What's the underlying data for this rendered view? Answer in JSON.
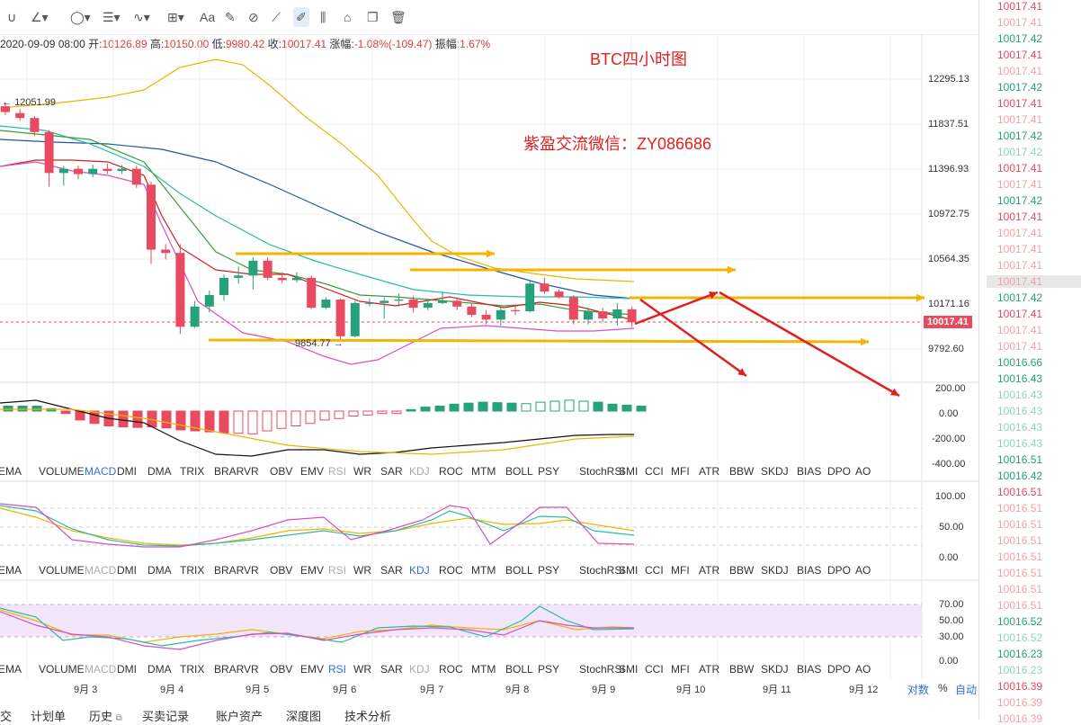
{
  "toolbar": {
    "icons": [
      "curve-icon",
      "polyline-dropdown-icon",
      "ellipse-dropdown-icon",
      "lines-dropdown-icon",
      "wave-dropdown-icon",
      "measure-dropdown-icon",
      "text-tool-icon",
      "brush-icon",
      "magnet-icon",
      "ruler-icon",
      "pen-icon",
      "indicator-scale-icon",
      "lock-icon",
      "copy-icon",
      "delete-icon"
    ],
    "text_tool_label": "Aa"
  },
  "ohlc": {
    "date": "2020-09-09 08:00",
    "open_label": "开:",
    "open": "10126.89",
    "high_label": "高:",
    "high": "10150.00",
    "low_label": "低:",
    "low": "9980.42",
    "close_label": "收:",
    "close": "10017.41",
    "change_label": "涨幅:",
    "change": "-1.08%(-109.47)",
    "amp_label": "振幅:",
    "amp": "1.67%"
  },
  "annotations": {
    "title": "BTC四小时图",
    "contact": "紫盈交流微信：ZY086686",
    "high_marker": "12051.99",
    "low_marker": "9854.77"
  },
  "main_axis": {
    "ticks": [
      "12295.13",
      "11837.51",
      "11396.93",
      "10972.75",
      "10564.35",
      "10171.16",
      "9792.60"
    ],
    "current": "10017.41"
  },
  "macd_axis": {
    "ticks": [
      "200.00",
      "0.00",
      "-200.00",
      "-400.00"
    ]
  },
  "kdj_axis": {
    "ticks": [
      "100.00",
      "50.00",
      "0.00"
    ]
  },
  "rsi_axis": {
    "ticks": [
      "70.00",
      "50.00",
      "30.00",
      "0.00"
    ]
  },
  "indicator_rows": [
    {
      "active": "MACD",
      "dim": [
        "RSI",
        "KDJ"
      ]
    },
    {
      "active": "KDJ",
      "dim": [
        "MACD",
        "RSI"
      ]
    },
    {
      "active": "RSI",
      "dim": [
        "MACD",
        "KDJ"
      ]
    }
  ],
  "indicators": [
    "EMA",
    "VOLUME",
    "MACD",
    "DMI",
    "DMA",
    "TRIX",
    "BRAR",
    "VR",
    "OBV",
    "EMV",
    "RSI",
    "WR",
    "SAR",
    "KDJ",
    "ROC",
    "MTM",
    "BOLL",
    "PSY",
    "StochRSI",
    "SMI",
    "CCI",
    "MFI",
    "ATR",
    "BBW",
    "SKDJ",
    "BIAS",
    "DPO",
    "AO"
  ],
  "x_axis": {
    "labels": [
      "9月 3",
      "9月 4",
      "9月 5",
      "9月 6",
      "9月 7",
      "9月 8",
      "9月 9",
      "9月 10",
      "9月 11",
      "9月 12"
    ]
  },
  "scale_controls": {
    "log": "对数",
    "percent": "%",
    "auto": "自动"
  },
  "bottom_tabs": [
    "交",
    "计划单",
    "历史",
    "买卖记录",
    "账户资产",
    "深度图",
    "技术分析"
  ],
  "trade_prices": [
    {
      "v": "10017.41",
      "c": "red"
    },
    {
      "v": "10017.41",
      "c": "red-light"
    },
    {
      "v": "10017.42",
      "c": "green"
    },
    {
      "v": "10017.41",
      "c": "red"
    },
    {
      "v": "10017.41",
      "c": "red-light"
    },
    {
      "v": "10017.42",
      "c": "green"
    },
    {
      "v": "10017.41",
      "c": "red"
    },
    {
      "v": "10017.41",
      "c": "red-light"
    },
    {
      "v": "10017.42",
      "c": "green"
    },
    {
      "v": "10017.42",
      "c": "green-light"
    },
    {
      "v": "10017.41",
      "c": "red"
    },
    {
      "v": "10017.41",
      "c": "red-light"
    },
    {
      "v": "10017.42",
      "c": "green"
    },
    {
      "v": "10017.41",
      "c": "red"
    },
    {
      "v": "10017.41",
      "c": "red-light"
    },
    {
      "v": "10017.41",
      "c": "red-light"
    },
    {
      "v": "10017.41",
      "c": "red-light"
    },
    {
      "v": "10017.41",
      "c": "red-light",
      "sel": true
    },
    {
      "v": "10017.42",
      "c": "green"
    },
    {
      "v": "10017.41",
      "c": "red"
    },
    {
      "v": "10017.41",
      "c": "red-light"
    },
    {
      "v": "10017.41",
      "c": "red-light"
    },
    {
      "v": "10016.66",
      "c": "green"
    },
    {
      "v": "10016.43",
      "c": "green"
    },
    {
      "v": "10016.43",
      "c": "green-light"
    },
    {
      "v": "10016.43",
      "c": "green-light"
    },
    {
      "v": "10016.43",
      "c": "green-light"
    },
    {
      "v": "10016.43",
      "c": "green-light"
    },
    {
      "v": "10016.51",
      "c": "green"
    },
    {
      "v": "10016.42",
      "c": "green"
    },
    {
      "v": "10016.51",
      "c": "red"
    },
    {
      "v": "10016.51",
      "c": "red-light"
    },
    {
      "v": "10016.51",
      "c": "red-light"
    },
    {
      "v": "10016.51",
      "c": "red-light"
    },
    {
      "v": "10016.51",
      "c": "red-light"
    },
    {
      "v": "10016.51",
      "c": "red-light"
    },
    {
      "v": "10016.51",
      "c": "red-light"
    },
    {
      "v": "10016.51",
      "c": "red-light"
    },
    {
      "v": "10016.52",
      "c": "green"
    },
    {
      "v": "10016.52",
      "c": "green-light"
    },
    {
      "v": "10016.23",
      "c": "green"
    },
    {
      "v": "10016.23",
      "c": "green-light"
    },
    {
      "v": "10016.39",
      "c": "red"
    },
    {
      "v": "10016.39",
      "c": "red-light"
    },
    {
      "v": "10016.39",
      "c": "red-light"
    }
  ],
  "colors": {
    "up": "#26a17b",
    "down": "#e84a5f",
    "accent": "#2f6fd6",
    "arrow": "#f5b400",
    "annot": "#e02020"
  },
  "chart_data": {
    "type": "candlestick",
    "interval": "4h",
    "candles": [
      {
        "o": 12020,
        "c": 11960,
        "h": 12060,
        "l": 11930
      },
      {
        "o": 11950,
        "c": 11900,
        "h": 11990,
        "l": 11870
      },
      {
        "o": 11900,
        "c": 11760,
        "h": 11920,
        "l": 11720
      },
      {
        "o": 11760,
        "c": 11360,
        "h": 11780,
        "l": 11230
      },
      {
        "o": 11360,
        "c": 11400,
        "h": 11430,
        "l": 11240
      },
      {
        "o": 11400,
        "c": 11350,
        "h": 11430,
        "l": 11300
      },
      {
        "o": 11350,
        "c": 11400,
        "h": 11440,
        "l": 11320
      },
      {
        "o": 11400,
        "c": 11380,
        "h": 11450,
        "l": 11350
      },
      {
        "o": 11380,
        "c": 11400,
        "h": 11440,
        "l": 11350
      },
      {
        "o": 11400,
        "c": 11250,
        "h": 11430,
        "l": 11220
      },
      {
        "o": 11250,
        "c": 10650,
        "h": 11280,
        "l": 10520
      },
      {
        "o": 10650,
        "c": 10620,
        "h": 10700,
        "l": 10560
      },
      {
        "o": 10620,
        "c": 9980,
        "h": 10700,
        "l": 9920
      },
      {
        "o": 9980,
        "c": 10150,
        "h": 10200,
        "l": 9970
      },
      {
        "o": 10150,
        "c": 10250,
        "h": 10290,
        "l": 10100
      },
      {
        "o": 10250,
        "c": 10400,
        "h": 10430,
        "l": 10200
      },
      {
        "o": 10400,
        "c": 10420,
        "h": 10500,
        "l": 10350
      },
      {
        "o": 10420,
        "c": 10550,
        "h": 10580,
        "l": 10300
      },
      {
        "o": 10550,
        "c": 10400,
        "h": 10580,
        "l": 10380
      },
      {
        "o": 10400,
        "c": 10380,
        "h": 10450,
        "l": 10350
      },
      {
        "o": 10380,
        "c": 10400,
        "h": 10450,
        "l": 10360
      },
      {
        "o": 10400,
        "c": 10140,
        "h": 10420,
        "l": 10130
      },
      {
        "o": 10140,
        "c": 10210,
        "h": 10230,
        "l": 10130
      },
      {
        "o": 10210,
        "c": 9900,
        "h": 10220,
        "l": 9860
      },
      {
        "o": 9900,
        "c": 10180,
        "h": 10200,
        "l": 9890
      },
      {
        "o": 10180,
        "c": 10180,
        "h": 10220,
        "l": 10150
      },
      {
        "o": 10180,
        "c": 10200,
        "h": 10230,
        "l": 10050
      },
      {
        "o": 10200,
        "c": 10210,
        "h": 10260,
        "l": 10150
      },
      {
        "o": 10210,
        "c": 10140,
        "h": 10240,
        "l": 10100
      },
      {
        "o": 10140,
        "c": 10180,
        "h": 10220,
        "l": 10120
      },
      {
        "o": 10180,
        "c": 10200,
        "h": 10280,
        "l": 10170
      },
      {
        "o": 10200,
        "c": 10150,
        "h": 10230,
        "l": 10120
      },
      {
        "o": 10150,
        "c": 10080,
        "h": 10180,
        "l": 10060
      },
      {
        "o": 10080,
        "c": 10040,
        "h": 10120,
        "l": 10000
      },
      {
        "o": 10040,
        "c": 10120,
        "h": 10140,
        "l": 9990
      },
      {
        "o": 10120,
        "c": 10110,
        "h": 10150,
        "l": 10080
      },
      {
        "o": 10110,
        "c": 10350,
        "h": 10380,
        "l": 10100
      },
      {
        "o": 10350,
        "c": 10280,
        "h": 10400,
        "l": 10260
      },
      {
        "o": 10280,
        "c": 10230,
        "h": 10300,
        "l": 10220
      },
      {
        "o": 10230,
        "c": 10040,
        "h": 10250,
        "l": 10000
      },
      {
        "o": 10040,
        "c": 10110,
        "h": 10140,
        "l": 10000
      },
      {
        "o": 10110,
        "c": 10050,
        "h": 10140,
        "l": 10020
      },
      {
        "o": 10050,
        "c": 10126,
        "h": 10180,
        "l": 9990
      },
      {
        "o": 10126.89,
        "c": 10017.41,
        "h": 10150,
        "l": 9980.42
      }
    ]
  }
}
